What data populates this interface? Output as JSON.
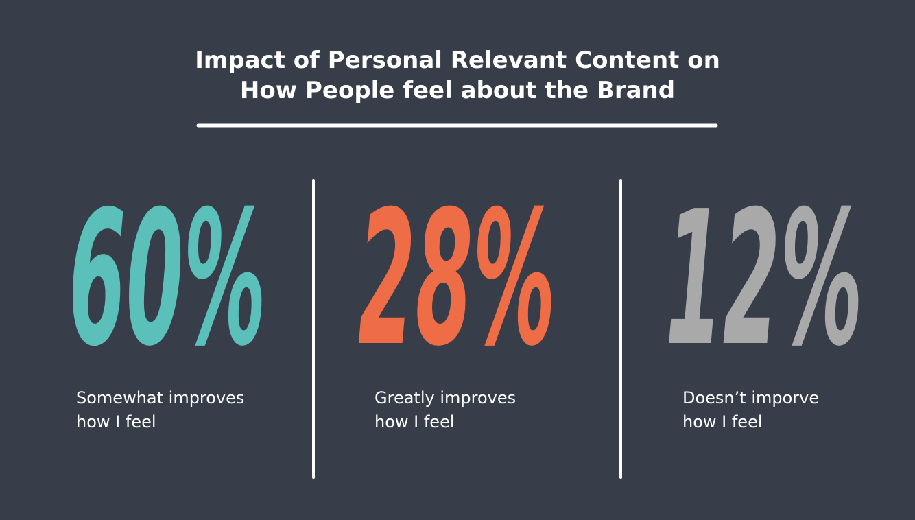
{
  "header": {
    "title_lines": [
      "Impact of Personal Relevant Content on",
      "How People feel about the Brand"
    ]
  },
  "stats": [
    {
      "text": "60%",
      "color": "#5bbfba",
      "caption_lines": [
        "Somewhat improves",
        "how I feel"
      ]
    },
    {
      "text": "28%",
      "color": "#ee6d47",
      "caption_lines": [
        "Greatly improves",
        "how I feel"
      ]
    },
    {
      "text": "12%",
      "color": "#a9a9a9",
      "caption_lines": [
        "Doesn’t imporve",
        "how I feel"
      ]
    }
  ]
}
